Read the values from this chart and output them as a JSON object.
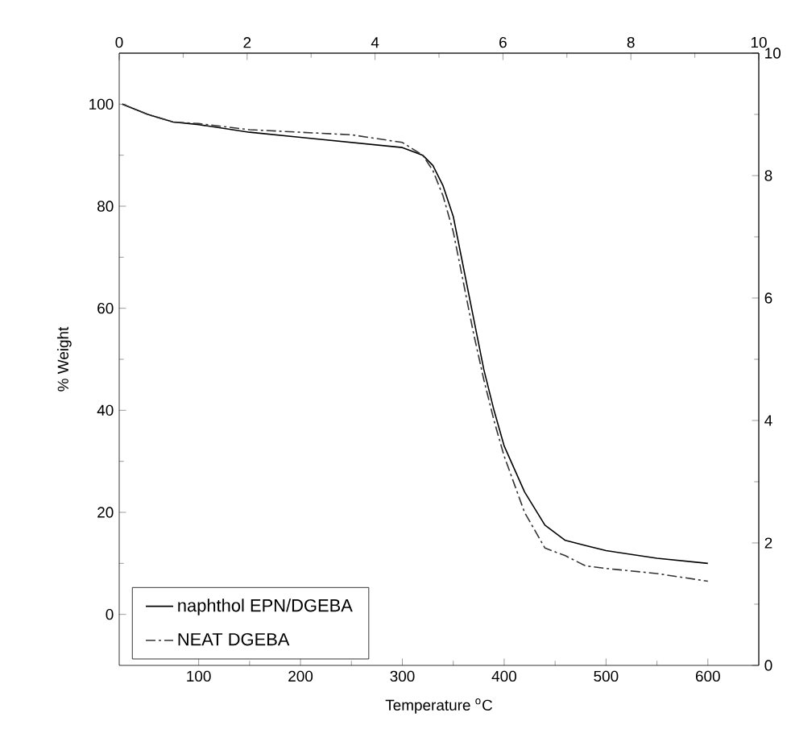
{
  "chart_data": {
    "type": "line",
    "xlabel": "Temperature $^{o}$C",
    "ylabel": "% Weight",
    "xlim": [
      22,
      650
    ],
    "xticks": [
      100,
      200,
      300,
      400,
      500,
      600
    ],
    "ylim": [
      -10,
      110
    ],
    "yticks": [
      0,
      20,
      40,
      60,
      80,
      100
    ],
    "x2lim": [
      0,
      10
    ],
    "x2ticks": [
      0,
      2,
      4,
      6,
      8,
      10
    ],
    "y2lim": [
      0,
      10
    ],
    "y2ticks": [
      0,
      2,
      4,
      6,
      8,
      10
    ],
    "legend": "bottom left",
    "grid": false,
    "x": [
      25,
      50,
      75,
      100,
      150,
      200,
      250,
      300,
      320,
      330,
      340,
      350,
      360,
      370,
      380,
      390,
      400,
      420,
      440,
      460,
      480,
      500,
      550,
      600
    ],
    "series": [
      {
        "name": "naphthol EPN/DGEBA",
        "color": "#000000",
        "line_style": "solid",
        "values": [
          100,
          98,
          96.5,
          96,
          94.5,
          93.5,
          92.5,
          91.5,
          90,
          88,
          84,
          78,
          68,
          58,
          48,
          40,
          33,
          24,
          17.5,
          14.5,
          13.5,
          12.5,
          11,
          10
        ]
      },
      {
        "name": "NEAT DGEBA",
        "color": "#333333",
        "line_style": "dashdot",
        "values": [
          100,
          98,
          96.5,
          96.2,
          95,
          94.5,
          94,
          92.5,
          90,
          87,
          82,
          75,
          65,
          55,
          46,
          38,
          31,
          20,
          13,
          11.5,
          9.5,
          9,
          8,
          6.5
        ]
      }
    ]
  }
}
